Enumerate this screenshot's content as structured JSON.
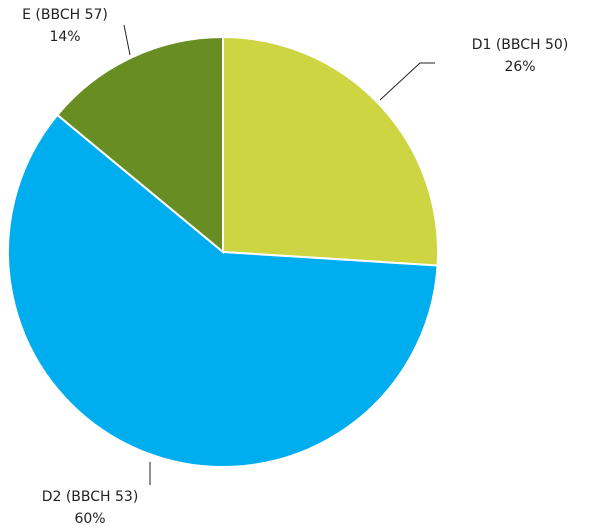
{
  "chart_data": {
    "type": "pie",
    "categories": [
      "D1 (BBCH 50)",
      "D2 (BBCH 53)",
      "E (BBCH 57)"
    ],
    "values": [
      26,
      60,
      14
    ],
    "value_labels": [
      "26%",
      "60%",
      "14%"
    ],
    "colors": [
      "#cdd542",
      "#00aeef",
      "#688e23"
    ]
  }
}
